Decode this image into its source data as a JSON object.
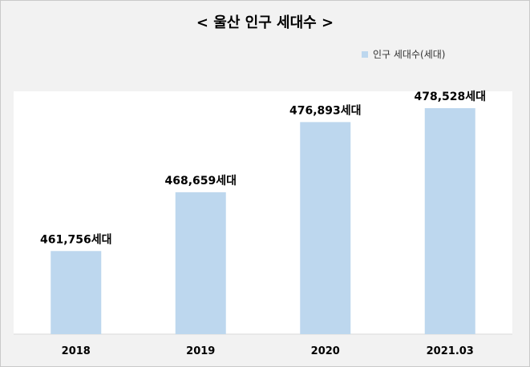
{
  "chart_data": {
    "type": "bar",
    "title": "< 울산 인구 세대수 >",
    "categories": [
      "2018",
      "2019",
      "2020",
      "2021.03"
    ],
    "series": [
      {
        "name": "인구 세대수(세대)",
        "values": [
          461756,
          468659,
          476893,
          478528
        ],
        "data_labels": [
          "461,756세대",
          "468,659세대",
          "476,893세대",
          "478,528세대"
        ],
        "color": "#bdd7ee"
      }
    ],
    "xlabel": "",
    "ylabel": "",
    "ylim": [
      452000,
      480500
    ],
    "grid": false,
    "legend": "top-right"
  }
}
